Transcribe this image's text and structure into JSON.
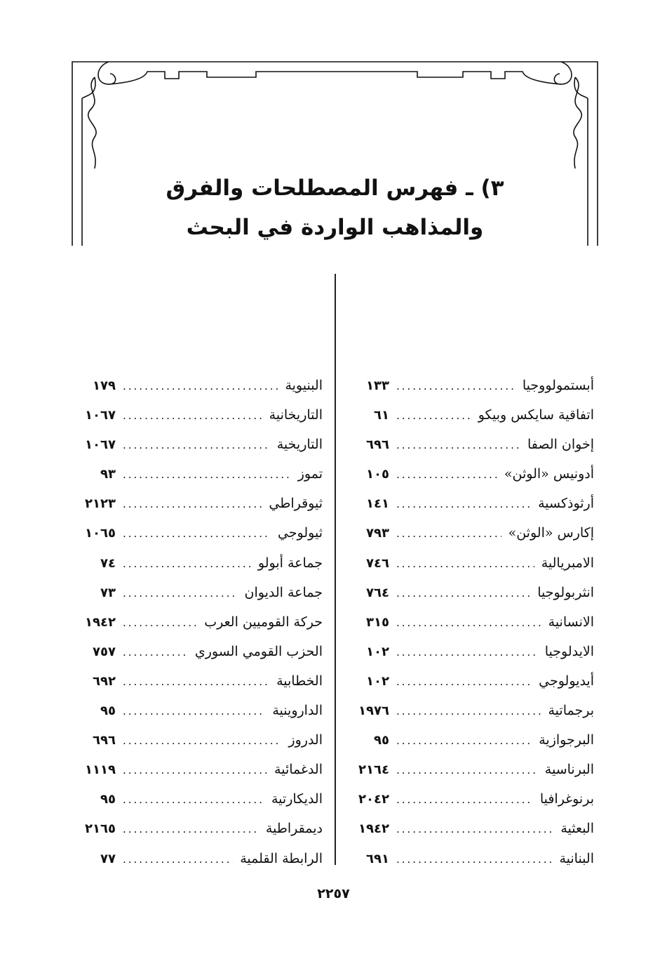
{
  "title": {
    "line1": "٣) ـ فهرس المصطلحات والفرق",
    "line2": "والمذاهب الواردة في البحث"
  },
  "index_right": [
    {
      "term": "أبستمولووجيا",
      "page": "١٣٣"
    },
    {
      "term": "اتفاقية سايكس وبيكو",
      "page": "٦١"
    },
    {
      "term": "إخوان الصفا",
      "page": "٦٩٦"
    },
    {
      "term": "أدونيس «الوثن»",
      "page": "١٠٥"
    },
    {
      "term": "أرثوذكسية",
      "page": "١٤١"
    },
    {
      "term": "إكارس «الوثن»",
      "page": "٧٩٣"
    },
    {
      "term": "الامبريالية",
      "page": "٧٤٦"
    },
    {
      "term": "انثربولوجيا",
      "page": "٧٦٤"
    },
    {
      "term": "الانسانية",
      "page": "٣١٥"
    },
    {
      "term": "الايدلوجيا",
      "page": "١٠٢"
    },
    {
      "term": "أيديولوجي",
      "page": "١٠٢"
    },
    {
      "term": "برجماتية",
      "page": "١٩٧٦"
    },
    {
      "term": "البرجوازية",
      "page": "٩٥"
    },
    {
      "term": "البرناسية",
      "page": "٢١٦٤"
    },
    {
      "term": "برنوغرافيا",
      "page": "٢٠٤٢"
    },
    {
      "term": "البعثية",
      "page": "١٩٤٢"
    },
    {
      "term": "البنانية",
      "page": "٦٩١"
    }
  ],
  "index_left": [
    {
      "term": "البنيوية",
      "page": "١٧٩"
    },
    {
      "term": "التاريخانية",
      "page": "١٠٦٧"
    },
    {
      "term": "التاريخية",
      "page": "١٠٦٧"
    },
    {
      "term": "تموز",
      "page": "٩٣"
    },
    {
      "term": "ثيوقراطي",
      "page": "٢١٢٣"
    },
    {
      "term": "ثيولوجي",
      "page": "١٠٦٥"
    },
    {
      "term": "جماعة أبولو",
      "page": "٧٤"
    },
    {
      "term": "جماعة الديوان",
      "page": "٧٣"
    },
    {
      "term": "حركة القوميين العرب",
      "page": "١٩٤٢"
    },
    {
      "term": "الحزب القومي السوري",
      "page": "٧٥٧"
    },
    {
      "term": "الخطابية",
      "page": "٦٩٢"
    },
    {
      "term": "الداروينية",
      "page": "٩٥"
    },
    {
      "term": "الدروز",
      "page": "٦٩٦"
    },
    {
      "term": "الدغمائية",
      "page": "١١١٩"
    },
    {
      "term": "الديكارتية",
      "page": "٩٥"
    },
    {
      "term": "ديمقراطية",
      "page": "٢١٦٥"
    },
    {
      "term": "الرابطة القلمية",
      "page": "٧٧"
    }
  ],
  "page_number": "٢٢٥٧"
}
